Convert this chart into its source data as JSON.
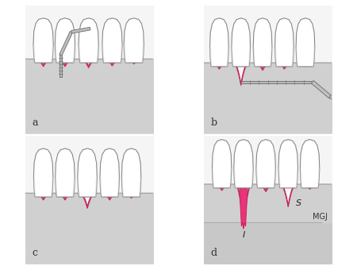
{
  "bg_color": "#f0f0f0",
  "gum_color": "#d0d0d0",
  "gum_dark": "#999999",
  "tooth_color": "#ffffff",
  "tooth_outline": "#888888",
  "recession_color": "#e8357a",
  "recession_outline": "#cc2060",
  "probe_fill": "#b8b8b8",
  "probe_outline": "#777777",
  "text_color": "#222222",
  "panel_label_fontsize": 9,
  "panel_labels": [
    "a",
    "b",
    "c",
    "d"
  ],
  "tooth_centers_a": [
    1.5,
    3.2,
    5.1,
    7.0,
    8.7
  ],
  "tooth_centers_b": [
    1.2,
    2.9,
    4.6,
    6.3,
    7.9
  ],
  "tooth_centers_c": [
    1.5,
    3.2,
    5.0,
    6.7,
    8.4
  ],
  "tooth_centers_d": [
    1.5,
    3.2,
    5.0,
    6.7,
    8.4
  ]
}
